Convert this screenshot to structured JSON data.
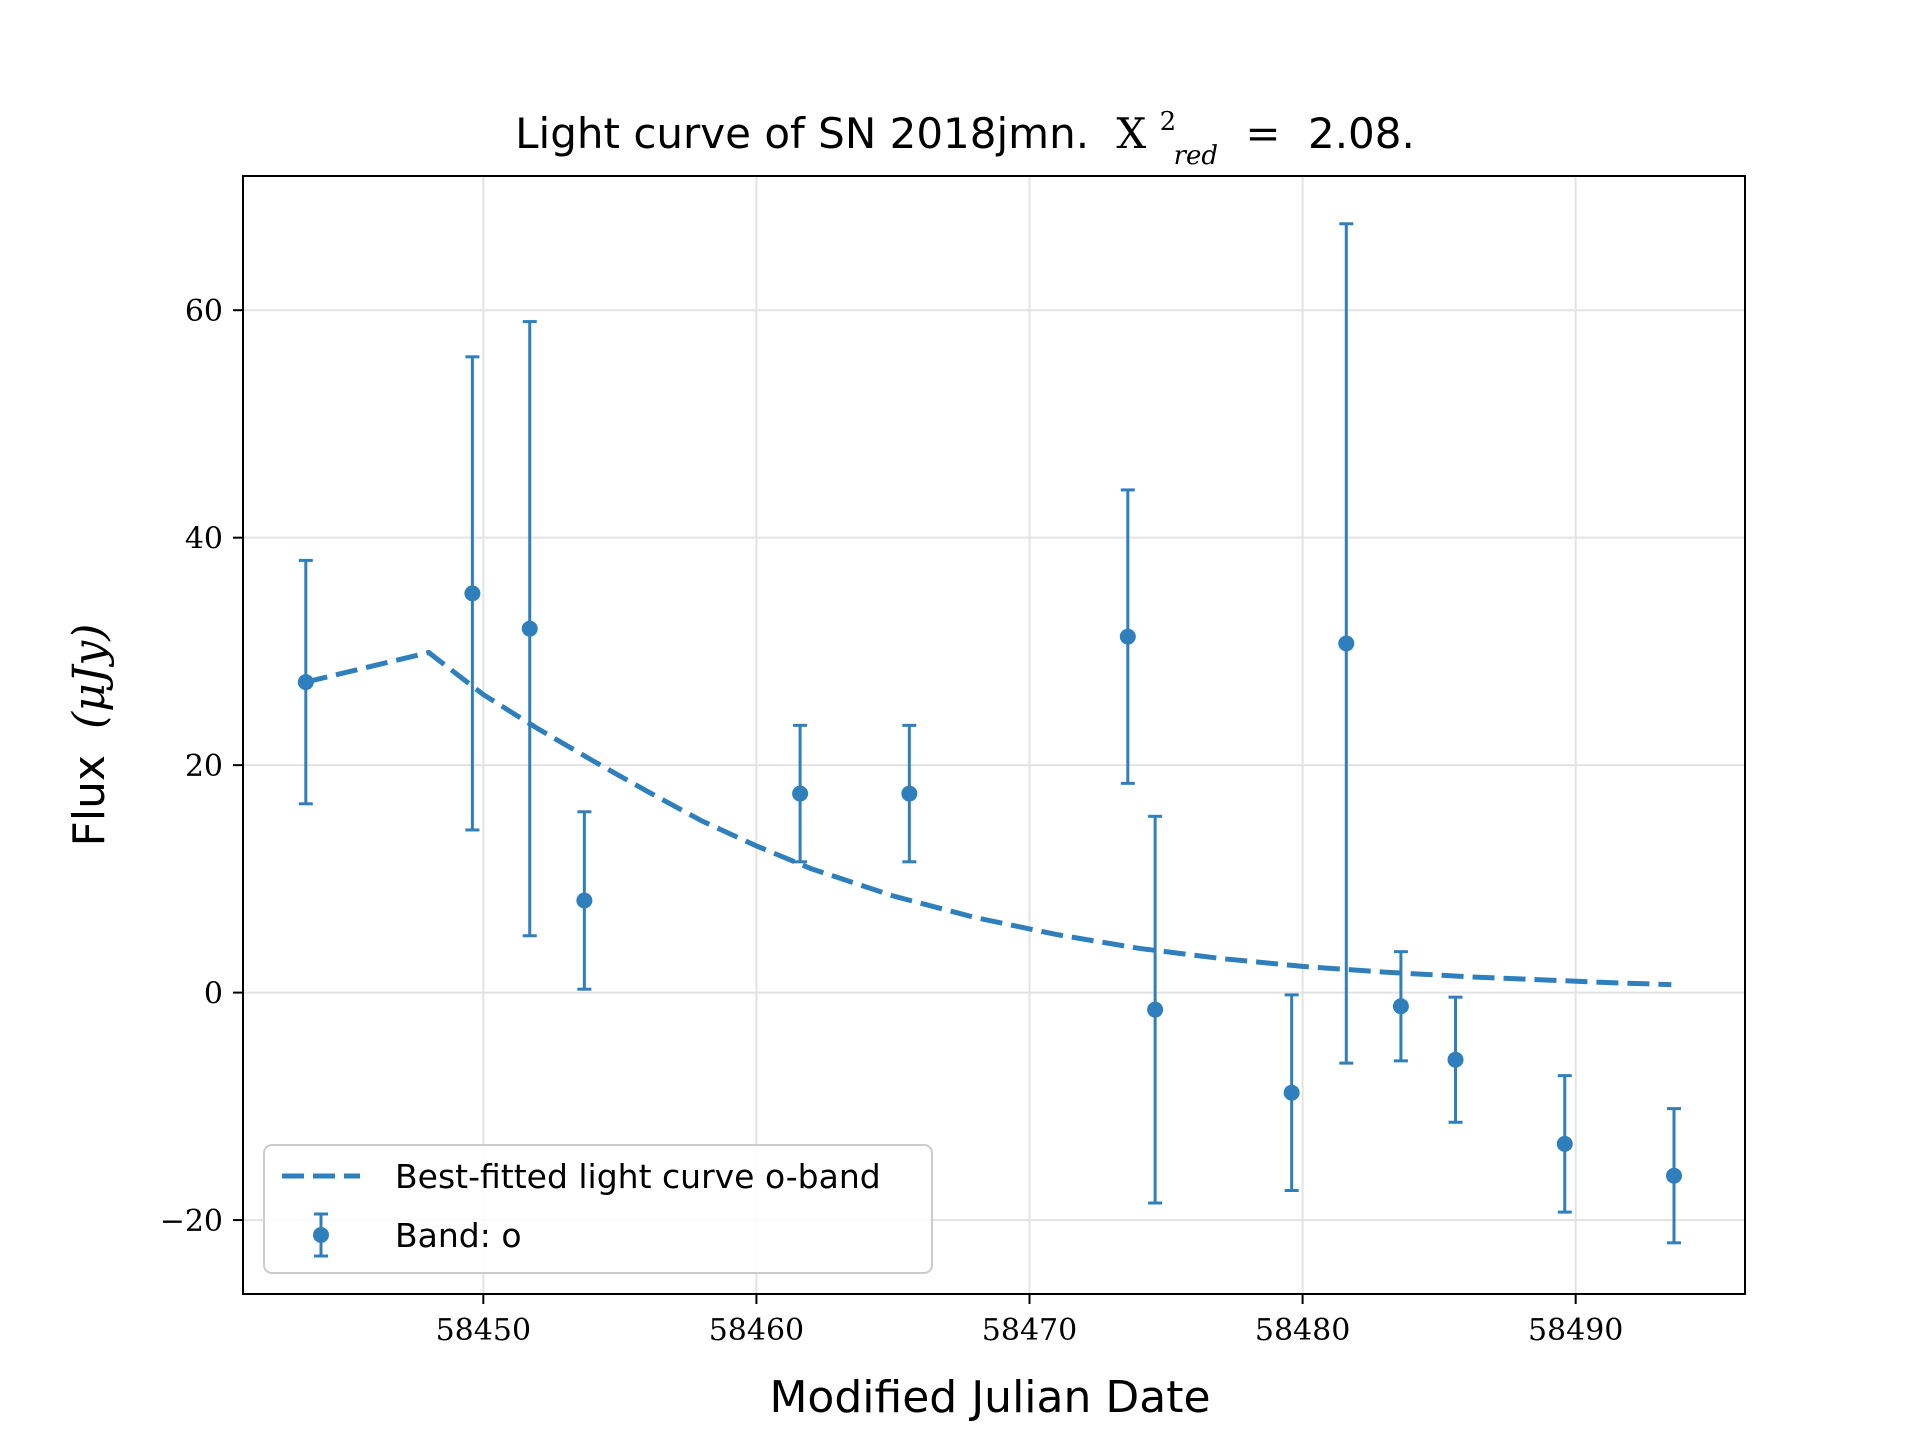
{
  "chart_data": {
    "type": "scatter",
    "title": {
      "prefix": "Light curve of SN 2018jmn.",
      "stat_symbol": "X",
      "stat_superscript": "2",
      "stat_subscript": "red",
      "stat_equals": "=",
      "stat_value": "2.08."
    },
    "xlabel": "Modified Julian Date",
    "ylabel": {
      "text": "Flux",
      "unit": "(μJy)"
    },
    "xlim": [
      58441.2,
      58496.2
    ],
    "ylim": [
      -26.5,
      71.8
    ],
    "x_ticks": [
      58450,
      58460,
      58470,
      58480,
      58490
    ],
    "x_tick_labels": [
      "58450",
      "58460",
      "58470",
      "58480",
      "58490"
    ],
    "y_ticks": [
      -20,
      0,
      20,
      40,
      60
    ],
    "y_tick_labels": [
      "−20",
      "0",
      "20",
      "40",
      "60"
    ],
    "grid": true,
    "legend_position": "lower-left",
    "colors": {
      "series": "#2f7fbd",
      "grid": "#e3e3e3",
      "axis": "#000000",
      "legend_border": "#cccccc"
    },
    "series": [
      {
        "name": "Best-fitted light curve o-band",
        "type": "line",
        "style": "dashed",
        "x": [
          58443.5,
          58448.0,
          58450.0,
          58452.0,
          58454.0,
          58456.0,
          58458.0,
          58460.0,
          58462.0,
          58465.0,
          58468.0,
          58471.0,
          58474.0,
          58477.0,
          58480.0,
          58483.0,
          58486.0,
          58489.0,
          58491.5,
          58493.5
        ],
        "y": [
          27.3,
          29.9,
          26.2,
          23.2,
          20.4,
          17.7,
          15.1,
          12.9,
          10.9,
          8.5,
          6.6,
          5.1,
          3.9,
          3.0,
          2.3,
          1.8,
          1.4,
          1.1,
          0.85,
          0.7
        ]
      },
      {
        "name": "Band: o",
        "type": "errorbar",
        "points": [
          {
            "x": 58443.5,
            "y": 27.3,
            "err": 10.7
          },
          {
            "x": 58449.6,
            "y": 35.1,
            "err": 20.8
          },
          {
            "x": 58451.7,
            "y": 32.0,
            "err": 27.0
          },
          {
            "x": 58453.7,
            "y": 8.1,
            "err": 7.8
          },
          {
            "x": 58461.6,
            "y": 17.5,
            "err": 6.0
          },
          {
            "x": 58465.6,
            "y": 17.5,
            "err": 6.0
          },
          {
            "x": 58473.6,
            "y": 31.3,
            "err": 12.9
          },
          {
            "x": 58474.6,
            "y": -1.5,
            "err": 17.0
          },
          {
            "x": 58479.6,
            "y": -8.8,
            "err": 8.6
          },
          {
            "x": 58481.6,
            "y": 30.7,
            "err": 36.9
          },
          {
            "x": 58483.6,
            "y": -1.2,
            "err": 4.8
          },
          {
            "x": 58485.6,
            "y": -5.9,
            "err": 5.5
          },
          {
            "x": 58489.6,
            "y": -13.3,
            "err": 6.0
          },
          {
            "x": 58493.6,
            "y": -16.1,
            "err": 5.9
          }
        ]
      }
    ]
  }
}
